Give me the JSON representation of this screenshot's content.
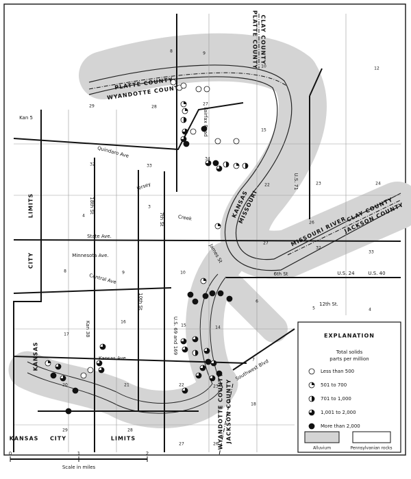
{
  "counties": [
    "PLATTE COUNTY",
    "WYANDOTTE COUNTY",
    "PLATTE COUNTY",
    "CLAY COUNTY",
    "CLAY COUNTY",
    "JACKSON COUNTY",
    "WYANDOTTE COUNTY",
    "JACKSON COUNTY"
  ],
  "states": [
    "KANSAS",
    "MISSOURI"
  ],
  "rivers": [
    "MISSOURI RIVER"
  ],
  "streets": [
    "Kan 5",
    "Quindaro Ave",
    "Jersey",
    "Creek",
    "State Ave.",
    "Minnesota Ave.",
    "Central Ave",
    "18th St",
    "7th St",
    "10th St",
    "Kan 38",
    "Kansas Ave.",
    "U.S. 69 and 169",
    "U.S. 71",
    "U.S. 24",
    "U.S. 40",
    "6th St",
    "12th St.",
    "Southwest Blvd",
    "James St",
    "Fairfax Road"
  ],
  "city_limits": [
    "LIMITS",
    "CITY",
    "KANSAS",
    "KANSAS",
    "CITY",
    "LIMITS"
  ],
  "sections": [
    "12",
    "10",
    "9",
    "8",
    "28",
    "29",
    "27",
    "15",
    "34",
    "33",
    "32",
    "22",
    "23",
    "24",
    "26",
    "27",
    "32",
    "33",
    "3",
    "4",
    "9",
    "10",
    "8",
    "16",
    "17",
    "15",
    "14",
    "6",
    "5",
    "4",
    "21",
    "20",
    "22",
    "23",
    "18",
    "27",
    "26",
    "28",
    "29",
    "7"
  ],
  "legend": {
    "heading": "EXPLANATION",
    "subheading": [
      "Total solids",
      "parts per million"
    ],
    "classes": [
      "Less than 500",
      "501 to 700",
      "701 to 1,000",
      "1,001 to 2,000",
      "More than 2,000"
    ],
    "units": [
      "Alluvium",
      "Pennsylvanian rocks"
    ]
  },
  "scale": {
    "ticks": [
      "0",
      "1",
      "2"
    ],
    "label": "Scale in miles"
  }
}
